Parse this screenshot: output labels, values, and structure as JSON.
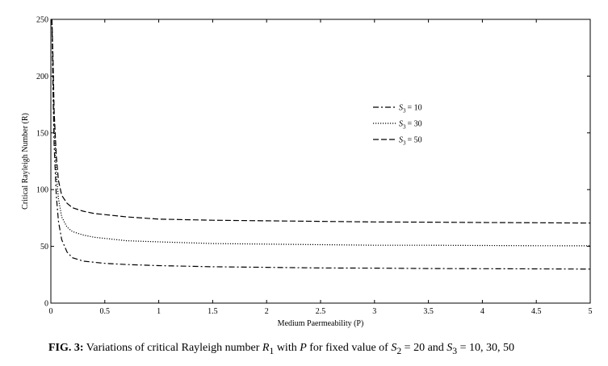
{
  "chart_data": {
    "type": "line",
    "xlabel": "Medium Paermeability (P)",
    "ylabel": "Critical Rayleigh Number (R)",
    "xlim": [
      0,
      5
    ],
    "ylim": [
      0,
      250
    ],
    "xticks": [
      0,
      0.5,
      1,
      1.5,
      2,
      2.5,
      3,
      3.5,
      4,
      4.5,
      5
    ],
    "yticks": [
      0,
      50,
      100,
      150,
      200,
      250
    ],
    "grid": false,
    "legend_position": "center-right",
    "series": [
      {
        "name": "S3 = 10",
        "legend_sym": "S",
        "legend_sub": "3",
        "legend_eq": "= 10",
        "style": "dashdot",
        "x": [
          0.01,
          0.02,
          0.03,
          0.05,
          0.07,
          0.1,
          0.15,
          0.2,
          0.3,
          0.4,
          0.5,
          0.7,
          1.0,
          1.5,
          2.0,
          2.5,
          3.0,
          3.5,
          4.0,
          4.5,
          5.0
        ],
        "y": [
          250,
          185,
          140,
          95,
          72,
          56,
          45,
          40,
          37,
          36,
          35,
          34,
          33,
          32,
          31.5,
          31,
          30.8,
          30.5,
          30.3,
          30.2,
          30
        ]
      },
      {
        "name": "S3 = 30",
        "legend_sym": "S",
        "legend_sub": "3",
        "legend_eq": "= 30",
        "style": "dotted",
        "x": [
          0.01,
          0.02,
          0.03,
          0.05,
          0.07,
          0.1,
          0.15,
          0.2,
          0.3,
          0.4,
          0.5,
          0.7,
          1.0,
          1.5,
          2.0,
          2.5,
          3.0,
          3.5,
          4.0,
          4.5,
          5.0
        ],
        "y": [
          250,
          200,
          160,
          115,
          92,
          76,
          67,
          63,
          60,
          58,
          57,
          55,
          54,
          52.5,
          52,
          51.5,
          51,
          51,
          50.8,
          50.6,
          50.5
        ]
      },
      {
        "name": "S3 = 50",
        "legend_sym": "S",
        "legend_sub": "3",
        "legend_eq": "= 50",
        "style": "dashed",
        "x": [
          0.01,
          0.02,
          0.03,
          0.05,
          0.07,
          0.1,
          0.15,
          0.2,
          0.3,
          0.4,
          0.5,
          0.7,
          1.0,
          1.5,
          2.0,
          2.5,
          3.0,
          3.5,
          4.0,
          4.5,
          5.0
        ],
        "y": [
          250,
          215,
          170,
          130,
          108,
          95,
          88,
          84,
          81,
          79,
          78,
          76,
          74,
          73,
          72.5,
          72,
          71.5,
          71.3,
          71,
          70.8,
          70.5
        ]
      }
    ]
  },
  "caption": {
    "fig_label": "FIG. 3:",
    "text_1": " Variations of critical Rayleigh number ",
    "sym_r": "R",
    "sub_r": "1",
    "text_2": " with ",
    "sym_p": "P",
    "text_3": " for fixed value of ",
    "sym_s2": "S",
    "sub_s2": "2",
    "text_4": " = 20 and ",
    "sym_s3": "S",
    "sub_s3": "3",
    "text_5": " = 10, 30, 50"
  }
}
